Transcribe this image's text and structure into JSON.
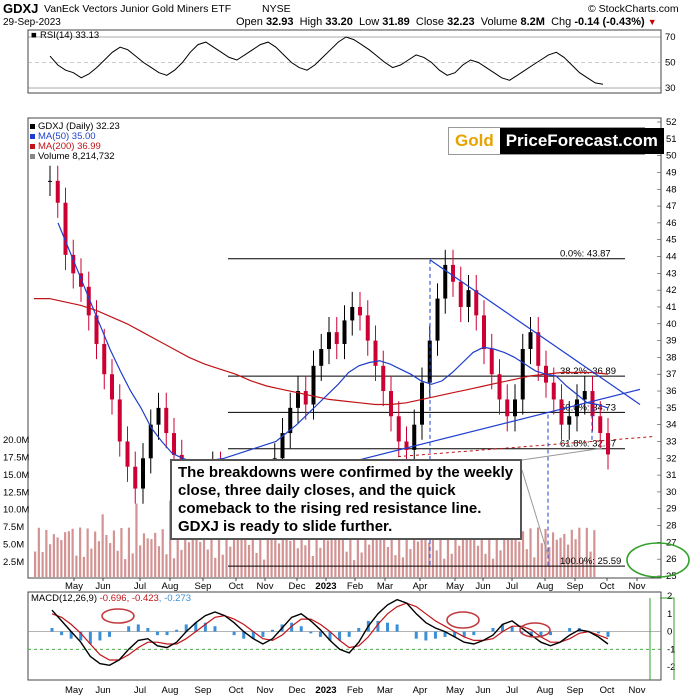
{
  "header": {
    "symbol": "GDXJ",
    "name": "VanEck Vectors Junior Gold Miners ETF",
    "exchange": "NYSE",
    "credit": "© StockCharts.com",
    "date": "29-Sep-2023",
    "open_label": "Open",
    "open": "32.93",
    "high_label": "High",
    "high": "33.20",
    "low_label": "Low",
    "low": "31.89",
    "close_label": "Close",
    "close": "32.23",
    "volume_label": "Volume",
    "volume": "8.2M",
    "chg_label": "Chg",
    "chg": "-0.14 (-0.43%)"
  },
  "logo": {
    "gold": "Gold",
    "pf": "PriceForecast.com"
  },
  "annotation": "The breakdowns were confirmed by the weekly close, three daily closes, and the quick comeback to the rising red resistance line. GDXJ is ready to slide further.",
  "colors": {
    "price_up": "#000000",
    "price_down": "#cc0033",
    "ma50": "#1f3fcc",
    "ma200": "#c01418",
    "trend": "#1f3fd0",
    "annotation_ellipse": "#c0393d",
    "target_ellipse": "#33a02c",
    "macd_hist": "#3a8fd8",
    "volume": "#cc8080"
  },
  "chart_data": [
    {
      "type": "line",
      "title": "RSI(14) 33.13",
      "ylim": [
        30,
        70
      ],
      "y_ticks": [
        "70",
        "50",
        "30"
      ],
      "values": [
        55,
        48,
        44,
        42,
        38,
        41,
        46,
        52,
        58,
        62,
        60,
        55,
        50,
        46,
        42,
        40,
        44,
        50,
        58,
        64,
        66,
        62,
        58,
        54,
        52,
        56,
        60,
        64,
        66,
        62,
        56,
        50,
        46,
        44,
        48,
        54,
        60,
        66,
        70,
        68,
        64,
        60,
        55,
        50,
        46,
        48,
        52,
        56,
        54,
        50,
        44,
        40,
        42,
        48,
        52,
        50,
        46,
        42,
        38,
        36,
        40,
        44,
        48,
        52,
        56,
        58,
        54,
        48,
        42,
        38,
        34,
        33
      ]
    },
    {
      "type": "candlestick",
      "title": "GDXJ (Daily) 32.23",
      "legend": [
        "GDXJ (Daily) 32.23",
        "MA(50) 35.00",
        "MA(200) 36.99",
        "Volume 8,214,732"
      ],
      "x_ticks": [
        "May",
        "Jun",
        "Jul",
        "Aug",
        "Sep",
        "Oct",
        "Nov",
        "Dec",
        "2023",
        "Feb",
        "Mar",
        "Apr",
        "May",
        "Jun",
        "Jul",
        "Aug",
        "Sep",
        "Oct",
        "Nov"
      ],
      "y_ticks": [
        "52",
        "51",
        "50",
        "49",
        "48",
        "47",
        "46",
        "45",
        "44",
        "43",
        "42",
        "41",
        "40",
        "39",
        "38",
        "37",
        "36",
        "35",
        "34",
        "33",
        "32",
        "31",
        "30",
        "29",
        "28",
        "27",
        "26",
        "25"
      ],
      "ylim": [
        25,
        52
      ],
      "volume_ticks": [
        "20.0M",
        "17.5M",
        "15.0M",
        "12.5M",
        "10.0M",
        "7.5M",
        "5.0M",
        "2.5M"
      ],
      "close": [
        48.5,
        47.2,
        44.1,
        43.0,
        42.2,
        40.5,
        38.8,
        37.0,
        35.5,
        33.0,
        31.5,
        30.2,
        32.0,
        34.0,
        35.0,
        33.5,
        32.2,
        31.0,
        30.0,
        29.5,
        30.5,
        31.5,
        30.8,
        30.0,
        29.8,
        29.2,
        28.8,
        29.0,
        30.5,
        32.0,
        33.5,
        35.0,
        36.0,
        35.2,
        37.5,
        38.5,
        39.5,
        38.8,
        40.2,
        41.0,
        40.5,
        39.0,
        37.5,
        36.0,
        34.5,
        33.0,
        32.5,
        34.0,
        36.5,
        39.0,
        41.5,
        43.5,
        42.5,
        41.0,
        42.0,
        40.5,
        38.5,
        37.0,
        35.5,
        34.5,
        35.5,
        38.5,
        39.5,
        37.5,
        36.5,
        35.5,
        34.0,
        34.5,
        35.5,
        36.0,
        34.5,
        33.5,
        32.23
      ],
      "ma50": [
        46,
        44.5,
        43,
        41.5,
        40,
        38.5,
        37.2,
        36,
        35,
        33.8,
        33,
        32.3,
        32,
        31.8,
        31.8,
        31.9,
        32,
        32.2,
        32.4,
        32.6,
        32.8,
        33,
        33.5,
        34,
        34.6,
        35.2,
        35.8,
        36.4,
        37.1,
        37.5,
        37.7,
        37.8,
        37.6,
        37.3,
        37,
        36.6,
        36.4,
        36.6,
        37.1,
        37.7,
        38.3,
        38.6,
        38.5,
        38.3,
        38,
        37.6,
        37.2,
        37,
        36.9,
        36.3,
        35.8,
        35.3,
        35.2,
        35
      ],
      "ma200": [
        41.5,
        41.5,
        41.3,
        41.1,
        40.8,
        40.4,
        40,
        39.5,
        39,
        38.5,
        38,
        37.6,
        37.3,
        37,
        36.6,
        36.3,
        36.1,
        35.9,
        35.7,
        35.5,
        35.4,
        35.3,
        35.2,
        35.2,
        35.3,
        35.5,
        35.7,
        35.9,
        36.1,
        36.3,
        36.5,
        36.7,
        36.9,
        37,
        37.1,
        37.1,
        37.1,
        37
      ],
      "levels": [
        {
          "label": "0.0%: 43.87",
          "value": 43.87
        },
        {
          "label": "38.2%: 36.89",
          "value": 36.89
        },
        {
          "label": "50.0%: 34.73",
          "value": 34.73
        },
        {
          "label": "61.8%: 32.57",
          "value": 32.57
        },
        {
          "label": "100.0%: 25.59",
          "value": 25.59
        }
      ]
    },
    {
      "type": "line",
      "title": "MACD(12,26,9) -0.696, -0.423, -0.273",
      "series_names": [
        "MACD(12,26,9)",
        "-0.696",
        "-0.423",
        "-0.273"
      ],
      "y_ticks": [
        "2",
        "1",
        "0",
        "-1",
        "-2"
      ],
      "ylim": [
        -2.5,
        2
      ],
      "macd": [
        1.2,
        0.6,
        0.0,
        -0.6,
        -1.4,
        -1.8,
        -1.9,
        -1.6,
        -1.0,
        -0.5,
        -0.4,
        -0.8,
        -0.9,
        -0.6,
        0.0,
        0.5,
        0.9,
        1.1,
        0.9,
        0.5,
        0.0,
        -0.4,
        -0.7,
        -0.4,
        0.2,
        0.8,
        1.0,
        0.6,
        0.1,
        -0.5,
        -1.0,
        -1.2,
        -0.6,
        0.3,
        1.0,
        1.5,
        1.8,
        1.6,
        1.0,
        0.5,
        0.2,
        0.0,
        -0.3,
        -0.6,
        -0.7,
        -0.5,
        -0.2,
        0.4,
        0.6,
        0.2,
        -0.2,
        -0.6,
        -0.8,
        -0.6,
        -0.2,
        0.1,
        0.0,
        -0.3,
        -0.7
      ],
      "signal": [
        1.0,
        0.8,
        0.4,
        -0.1,
        -0.7,
        -1.3,
        -1.6,
        -1.6,
        -1.3,
        -0.9,
        -0.6,
        -0.6,
        -0.7,
        -0.7,
        -0.4,
        0.0,
        0.4,
        0.8,
        0.9,
        0.7,
        0.4,
        0.0,
        -0.4,
        -0.5,
        -0.2,
        0.3,
        0.7,
        0.7,
        0.4,
        0.0,
        -0.5,
        -0.9,
        -0.8,
        -0.3,
        0.4,
        1.0,
        1.4,
        1.6,
        1.4,
        1.0,
        0.6,
        0.3,
        0.0,
        -0.3,
        -0.5,
        -0.5,
        -0.4,
        0.0,
        0.3,
        0.3,
        0.1,
        -0.3,
        -0.6,
        -0.6,
        -0.4,
        -0.1,
        0.0,
        -0.2,
        -0.4
      ],
      "x_ticks": [
        "May",
        "Jun",
        "Jul",
        "Aug",
        "Sep",
        "Oct",
        "Nov",
        "Dec",
        "2023",
        "Feb",
        "Mar",
        "Apr",
        "May",
        "Jun",
        "Jul",
        "Aug",
        "Sep",
        "Oct",
        "Nov"
      ]
    }
  ]
}
